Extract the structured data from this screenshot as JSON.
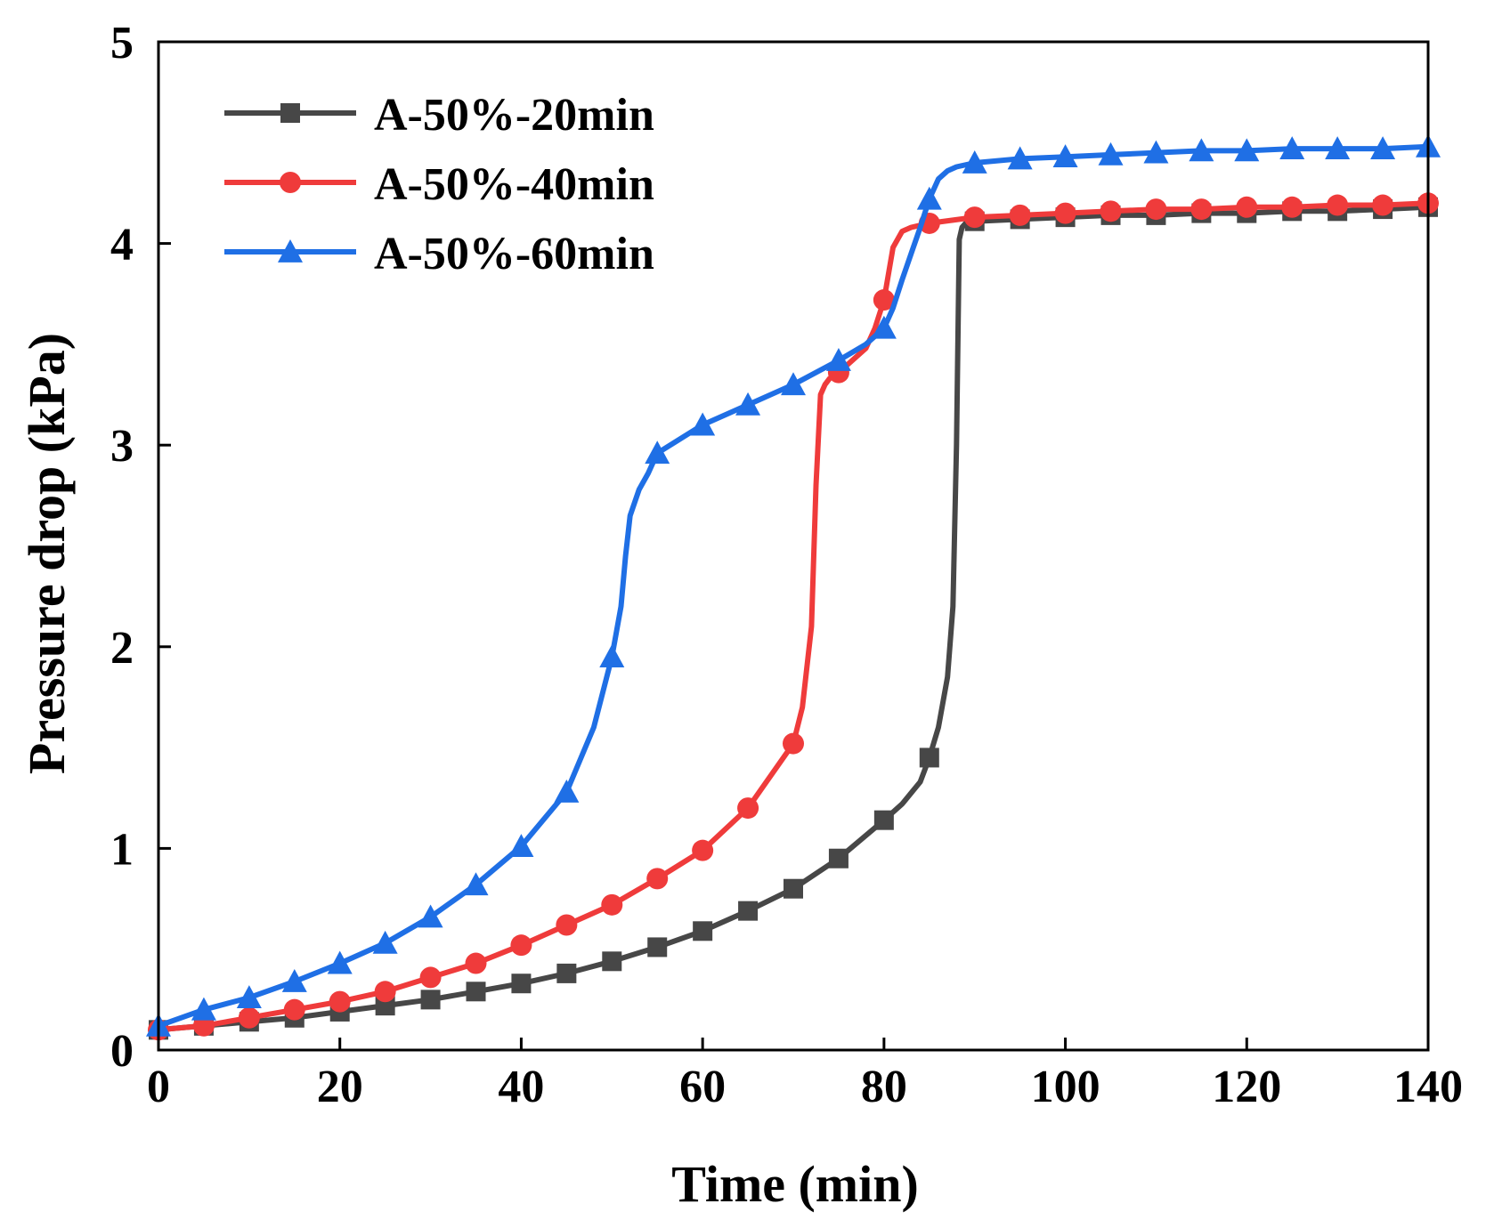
{
  "chart_data": {
    "type": "line",
    "title": "",
    "xlabel": "Time (min)",
    "ylabel": "Pressure drop (kPa)",
    "xlim": [
      0,
      140
    ],
    "ylim": [
      0,
      5
    ],
    "xticks": [
      0,
      20,
      40,
      60,
      80,
      100,
      120,
      140
    ],
    "yticks": [
      0,
      1,
      2,
      3,
      4,
      5
    ],
    "xtick_labels": [
      "0",
      "20",
      "40",
      "60",
      "80",
      "100",
      "120",
      "140"
    ],
    "ytick_labels": [
      "0",
      "1",
      "2",
      "3",
      "4",
      "5"
    ],
    "grid": false,
    "legend_position": "top-left",
    "series": [
      {
        "name": "A-50%-20min",
        "color": "#474747",
        "marker": "square",
        "x": [
          0,
          5,
          10,
          15,
          20,
          25,
          30,
          35,
          40,
          45,
          50,
          55,
          60,
          65,
          70,
          75,
          80,
          82,
          84,
          85,
          86,
          87,
          87.6,
          88,
          88.3,
          88.6,
          89,
          90,
          95,
          100,
          105,
          110,
          115,
          120,
          125,
          130,
          135,
          140
        ],
        "y": [
          0.1,
          0.12,
          0.14,
          0.16,
          0.19,
          0.22,
          0.25,
          0.29,
          0.33,
          0.38,
          0.44,
          0.51,
          0.59,
          0.69,
          0.8,
          0.95,
          1.14,
          1.22,
          1.33,
          1.45,
          1.6,
          1.85,
          2.2,
          3.0,
          4.02,
          4.08,
          4.1,
          4.11,
          4.12,
          4.13,
          4.14,
          4.14,
          4.15,
          4.15,
          4.16,
          4.16,
          4.17,
          4.18
        ],
        "marker_x": [
          0,
          5,
          10,
          15,
          20,
          25,
          30,
          35,
          40,
          45,
          50,
          55,
          60,
          65,
          70,
          75,
          80,
          85,
          90,
          95,
          100,
          105,
          110,
          115,
          120,
          125,
          130,
          135,
          140
        ],
        "marker_y": [
          0.1,
          0.12,
          0.14,
          0.16,
          0.19,
          0.22,
          0.25,
          0.29,
          0.33,
          0.38,
          0.44,
          0.51,
          0.59,
          0.69,
          0.8,
          0.95,
          1.14,
          1.45,
          4.11,
          4.12,
          4.13,
          4.14,
          4.14,
          4.15,
          4.15,
          4.16,
          4.16,
          4.17,
          4.18
        ]
      },
      {
        "name": "A-50%-40min",
        "color": "#ef3b3b",
        "marker": "circle",
        "x": [
          0,
          5,
          10,
          15,
          20,
          25,
          30,
          35,
          40,
          45,
          50,
          55,
          60,
          65,
          70,
          71,
          72,
          72.5,
          73,
          73.5,
          74,
          75,
          76,
          78,
          79,
          80,
          81,
          82,
          83,
          84,
          85,
          90,
          95,
          100,
          105,
          110,
          115,
          120,
          125,
          130,
          135,
          140
        ],
        "y": [
          0.1,
          0.12,
          0.16,
          0.2,
          0.24,
          0.29,
          0.36,
          0.43,
          0.52,
          0.62,
          0.72,
          0.85,
          0.99,
          1.2,
          1.52,
          1.7,
          2.1,
          2.8,
          3.25,
          3.3,
          3.33,
          3.36,
          3.4,
          3.48,
          3.58,
          3.72,
          3.98,
          4.06,
          4.08,
          4.09,
          4.1,
          4.13,
          4.14,
          4.15,
          4.16,
          4.17,
          4.17,
          4.18,
          4.18,
          4.19,
          4.19,
          4.2
        ],
        "marker_x": [
          0,
          5,
          10,
          15,
          20,
          25,
          30,
          35,
          40,
          45,
          50,
          55,
          60,
          65,
          70,
          75,
          80,
          85,
          90,
          95,
          100,
          105,
          110,
          115,
          120,
          125,
          130,
          135,
          140
        ],
        "marker_y": [
          0.1,
          0.12,
          0.16,
          0.2,
          0.24,
          0.29,
          0.36,
          0.43,
          0.52,
          0.62,
          0.72,
          0.85,
          0.99,
          1.2,
          1.52,
          3.36,
          3.72,
          4.1,
          4.13,
          4.14,
          4.15,
          4.16,
          4.17,
          4.17,
          4.18,
          4.18,
          4.19,
          4.19,
          4.2
        ]
      },
      {
        "name": "A-50%-60min",
        "color": "#1f6fe5",
        "marker": "triangle",
        "x": [
          0,
          5,
          10,
          15,
          20,
          25,
          30,
          35,
          40,
          45,
          48,
          50,
          51,
          51.5,
          52,
          53,
          54,
          55,
          60,
          65,
          70,
          75,
          78,
          80,
          81,
          82,
          83,
          84,
          85,
          86,
          87,
          88,
          90,
          95,
          100,
          105,
          110,
          115,
          120,
          125,
          130,
          135,
          140
        ],
        "y": [
          0.12,
          0.2,
          0.26,
          0.34,
          0.43,
          0.53,
          0.66,
          0.82,
          1.01,
          1.28,
          1.6,
          1.95,
          2.2,
          2.45,
          2.65,
          2.78,
          2.86,
          2.96,
          3.1,
          3.2,
          3.3,
          3.42,
          3.5,
          3.58,
          3.68,
          3.82,
          3.95,
          4.08,
          4.22,
          4.32,
          4.36,
          4.38,
          4.4,
          4.42,
          4.43,
          4.44,
          4.45,
          4.46,
          4.46,
          4.47,
          4.47,
          4.47,
          4.48
        ],
        "marker_x": [
          0,
          5,
          10,
          15,
          20,
          25,
          30,
          35,
          40,
          45,
          50,
          55,
          60,
          65,
          70,
          75,
          80,
          85,
          90,
          95,
          100,
          105,
          110,
          115,
          120,
          125,
          130,
          135,
          140
        ],
        "marker_y": [
          0.12,
          0.2,
          0.26,
          0.34,
          0.43,
          0.53,
          0.66,
          0.82,
          1.01,
          1.28,
          1.95,
          2.96,
          3.1,
          3.2,
          3.3,
          3.42,
          3.58,
          4.22,
          4.4,
          4.42,
          4.43,
          4.44,
          4.45,
          4.46,
          4.46,
          4.47,
          4.47,
          4.47,
          4.48
        ]
      }
    ]
  }
}
